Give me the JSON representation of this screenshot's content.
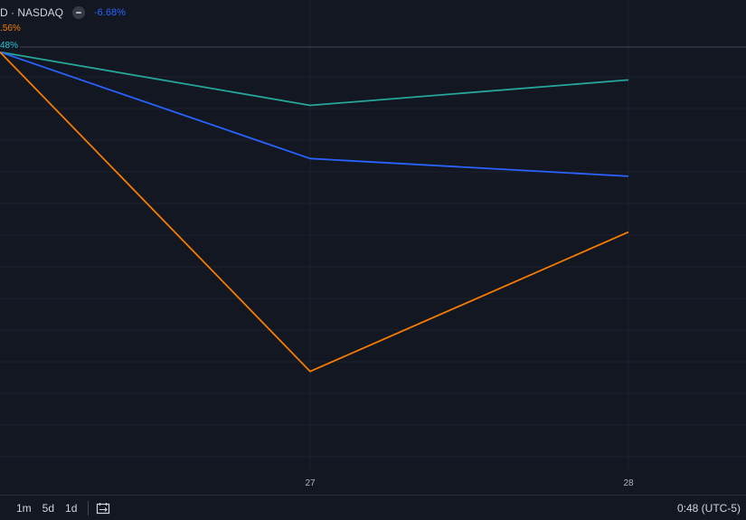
{
  "header": {
    "symbol_title": "D · NASDAQ",
    "change_pct": "-6.68%",
    "sub_pct": ".56%",
    "axis_tag": "48%"
  },
  "bottom_bar": {
    "ranges": [
      "1m",
      "5d",
      "1d"
    ],
    "partial_left": "",
    "time_readout": "0:48 (UTC-5)"
  },
  "colors": {
    "background": "#131722",
    "grid": "#1e222d",
    "teal": "#26a69a",
    "blue": "#2962ff",
    "orange": "#f57c00"
  },
  "chart_data": {
    "type": "line",
    "x": [
      "",
      "27",
      "28"
    ],
    "xticks": [
      "27",
      "28"
    ],
    "ylim": [
      -16.5,
      0.2
    ],
    "series": [
      {
        "color": "#26a69a",
        "values": [
          0,
          -2.1,
          -1.1
        ]
      },
      {
        "color": "#2962ff",
        "values": [
          0,
          -4.2,
          -4.9
        ]
      },
      {
        "color": "#f57c00",
        "values": [
          0,
          -12.6,
          -7.1
        ]
      }
    ]
  }
}
